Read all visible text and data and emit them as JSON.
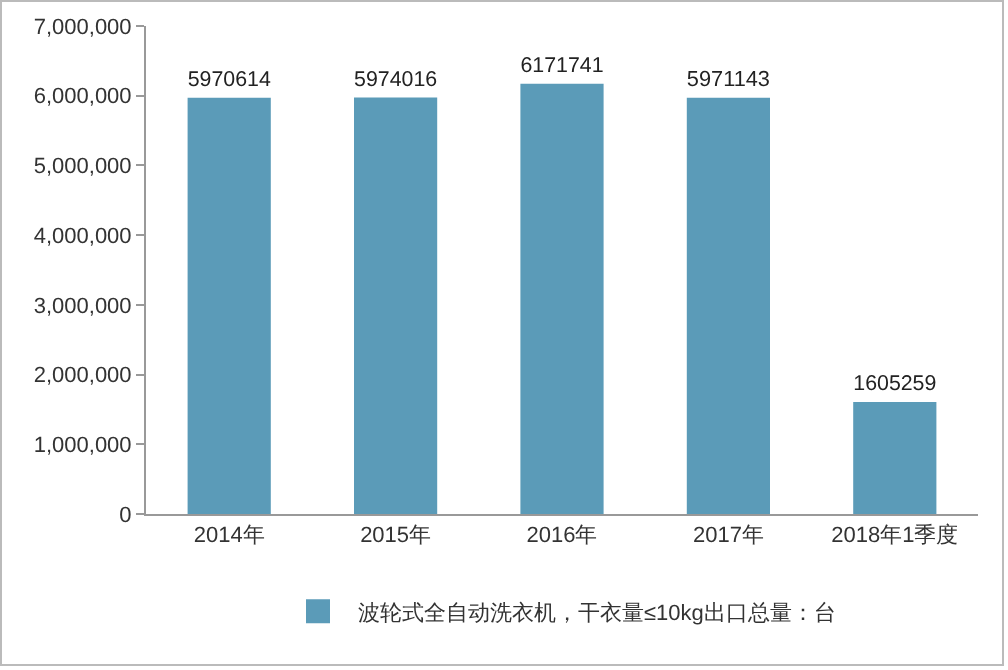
{
  "chart_data": {
    "type": "bar",
    "categories": [
      "2014年",
      "2015年",
      "2016年",
      "2017年",
      "2018年1季度"
    ],
    "series": [
      {
        "name": "波轮式全自动洗衣机，干衣量≤10kg出口总量：台",
        "color": "#5b9bb8",
        "values": [
          5970614,
          5974016,
          6171741,
          5971143,
          1605259
        ]
      }
    ],
    "ylim": [
      0,
      7000000
    ],
    "yticks": [
      {
        "value": 0,
        "label": "0"
      },
      {
        "value": 1000000,
        "label": "1,000,000"
      },
      {
        "value": 2000000,
        "label": "2,000,000"
      },
      {
        "value": 3000000,
        "label": "3,000,000"
      },
      {
        "value": 4000000,
        "label": "4,000,000"
      },
      {
        "value": 5000000,
        "label": "5,000,000"
      },
      {
        "value": 6000000,
        "label": "6,000,000"
      },
      {
        "value": 7000000,
        "label": "7,000,000"
      }
    ],
    "data_labels": true,
    "grid": false,
    "legend": "bottom"
  }
}
